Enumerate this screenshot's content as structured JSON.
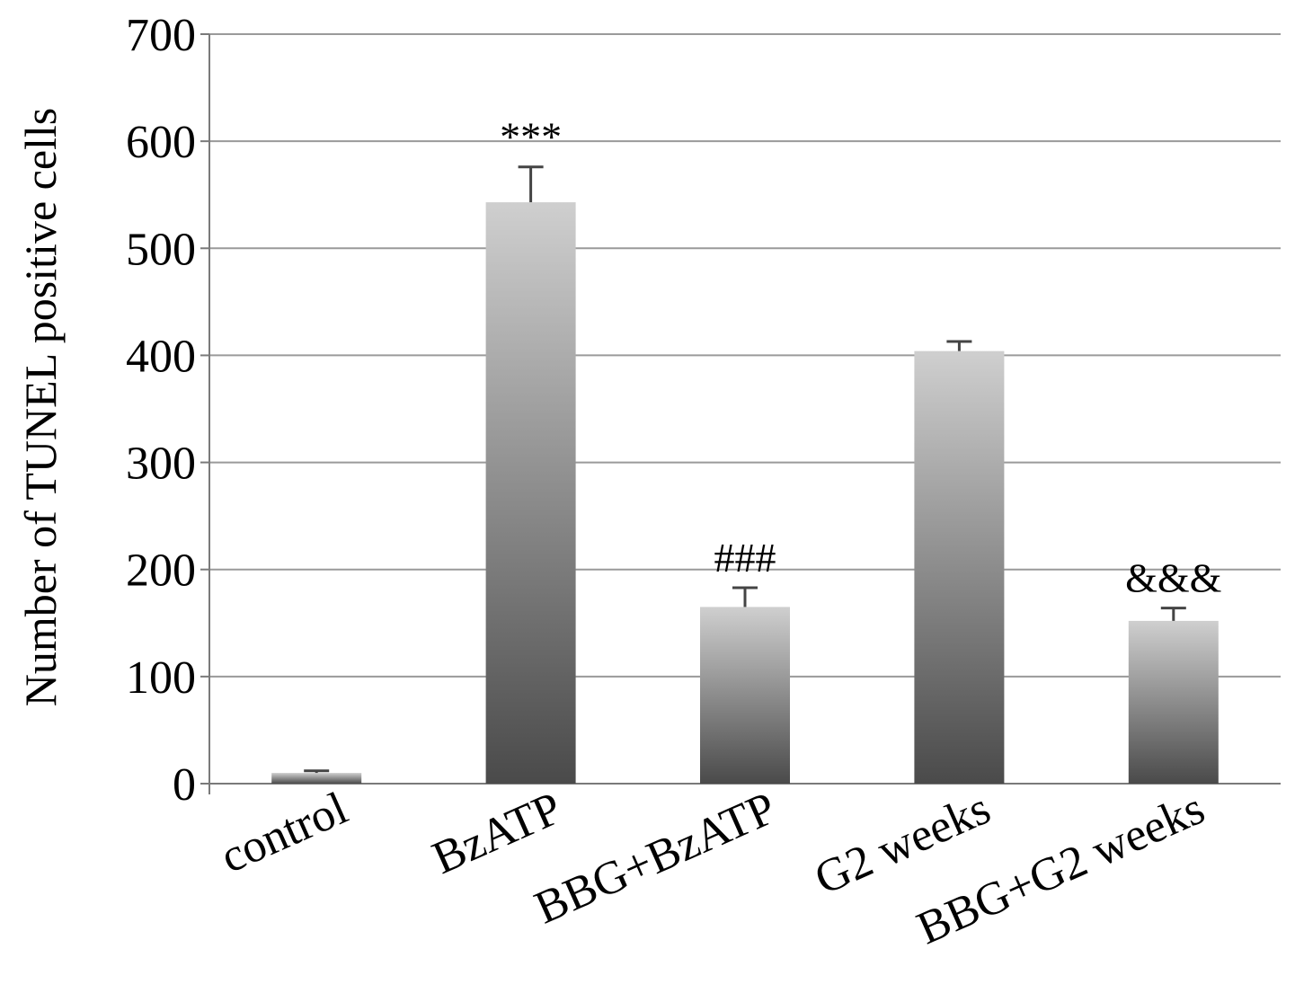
{
  "chart_data": {
    "type": "bar",
    "title": "",
    "xlabel": "",
    "ylabel": "Number of TUNEL positive cells",
    "ylim": [
      0,
      700
    ],
    "yticks": [
      0,
      100,
      200,
      300,
      400,
      500,
      600,
      700
    ],
    "grid": true,
    "categories": [
      "control",
      "BzATP",
      "BBG+BzATP",
      "G2 weeks",
      "BBG+G2 weeks"
    ],
    "values": [
      10,
      543,
      165,
      404,
      152
    ],
    "errors": [
      2,
      33,
      18,
      9,
      12
    ],
    "annotations": [
      "",
      "***",
      "###",
      "",
      "&&&"
    ],
    "colors": {
      "bar_top": "#cfcfcf",
      "bar_bottom": "#4a4a4a",
      "grid": "#9a9a9a",
      "axis": "#7a7a7a",
      "error_bar": "#444444"
    }
  }
}
